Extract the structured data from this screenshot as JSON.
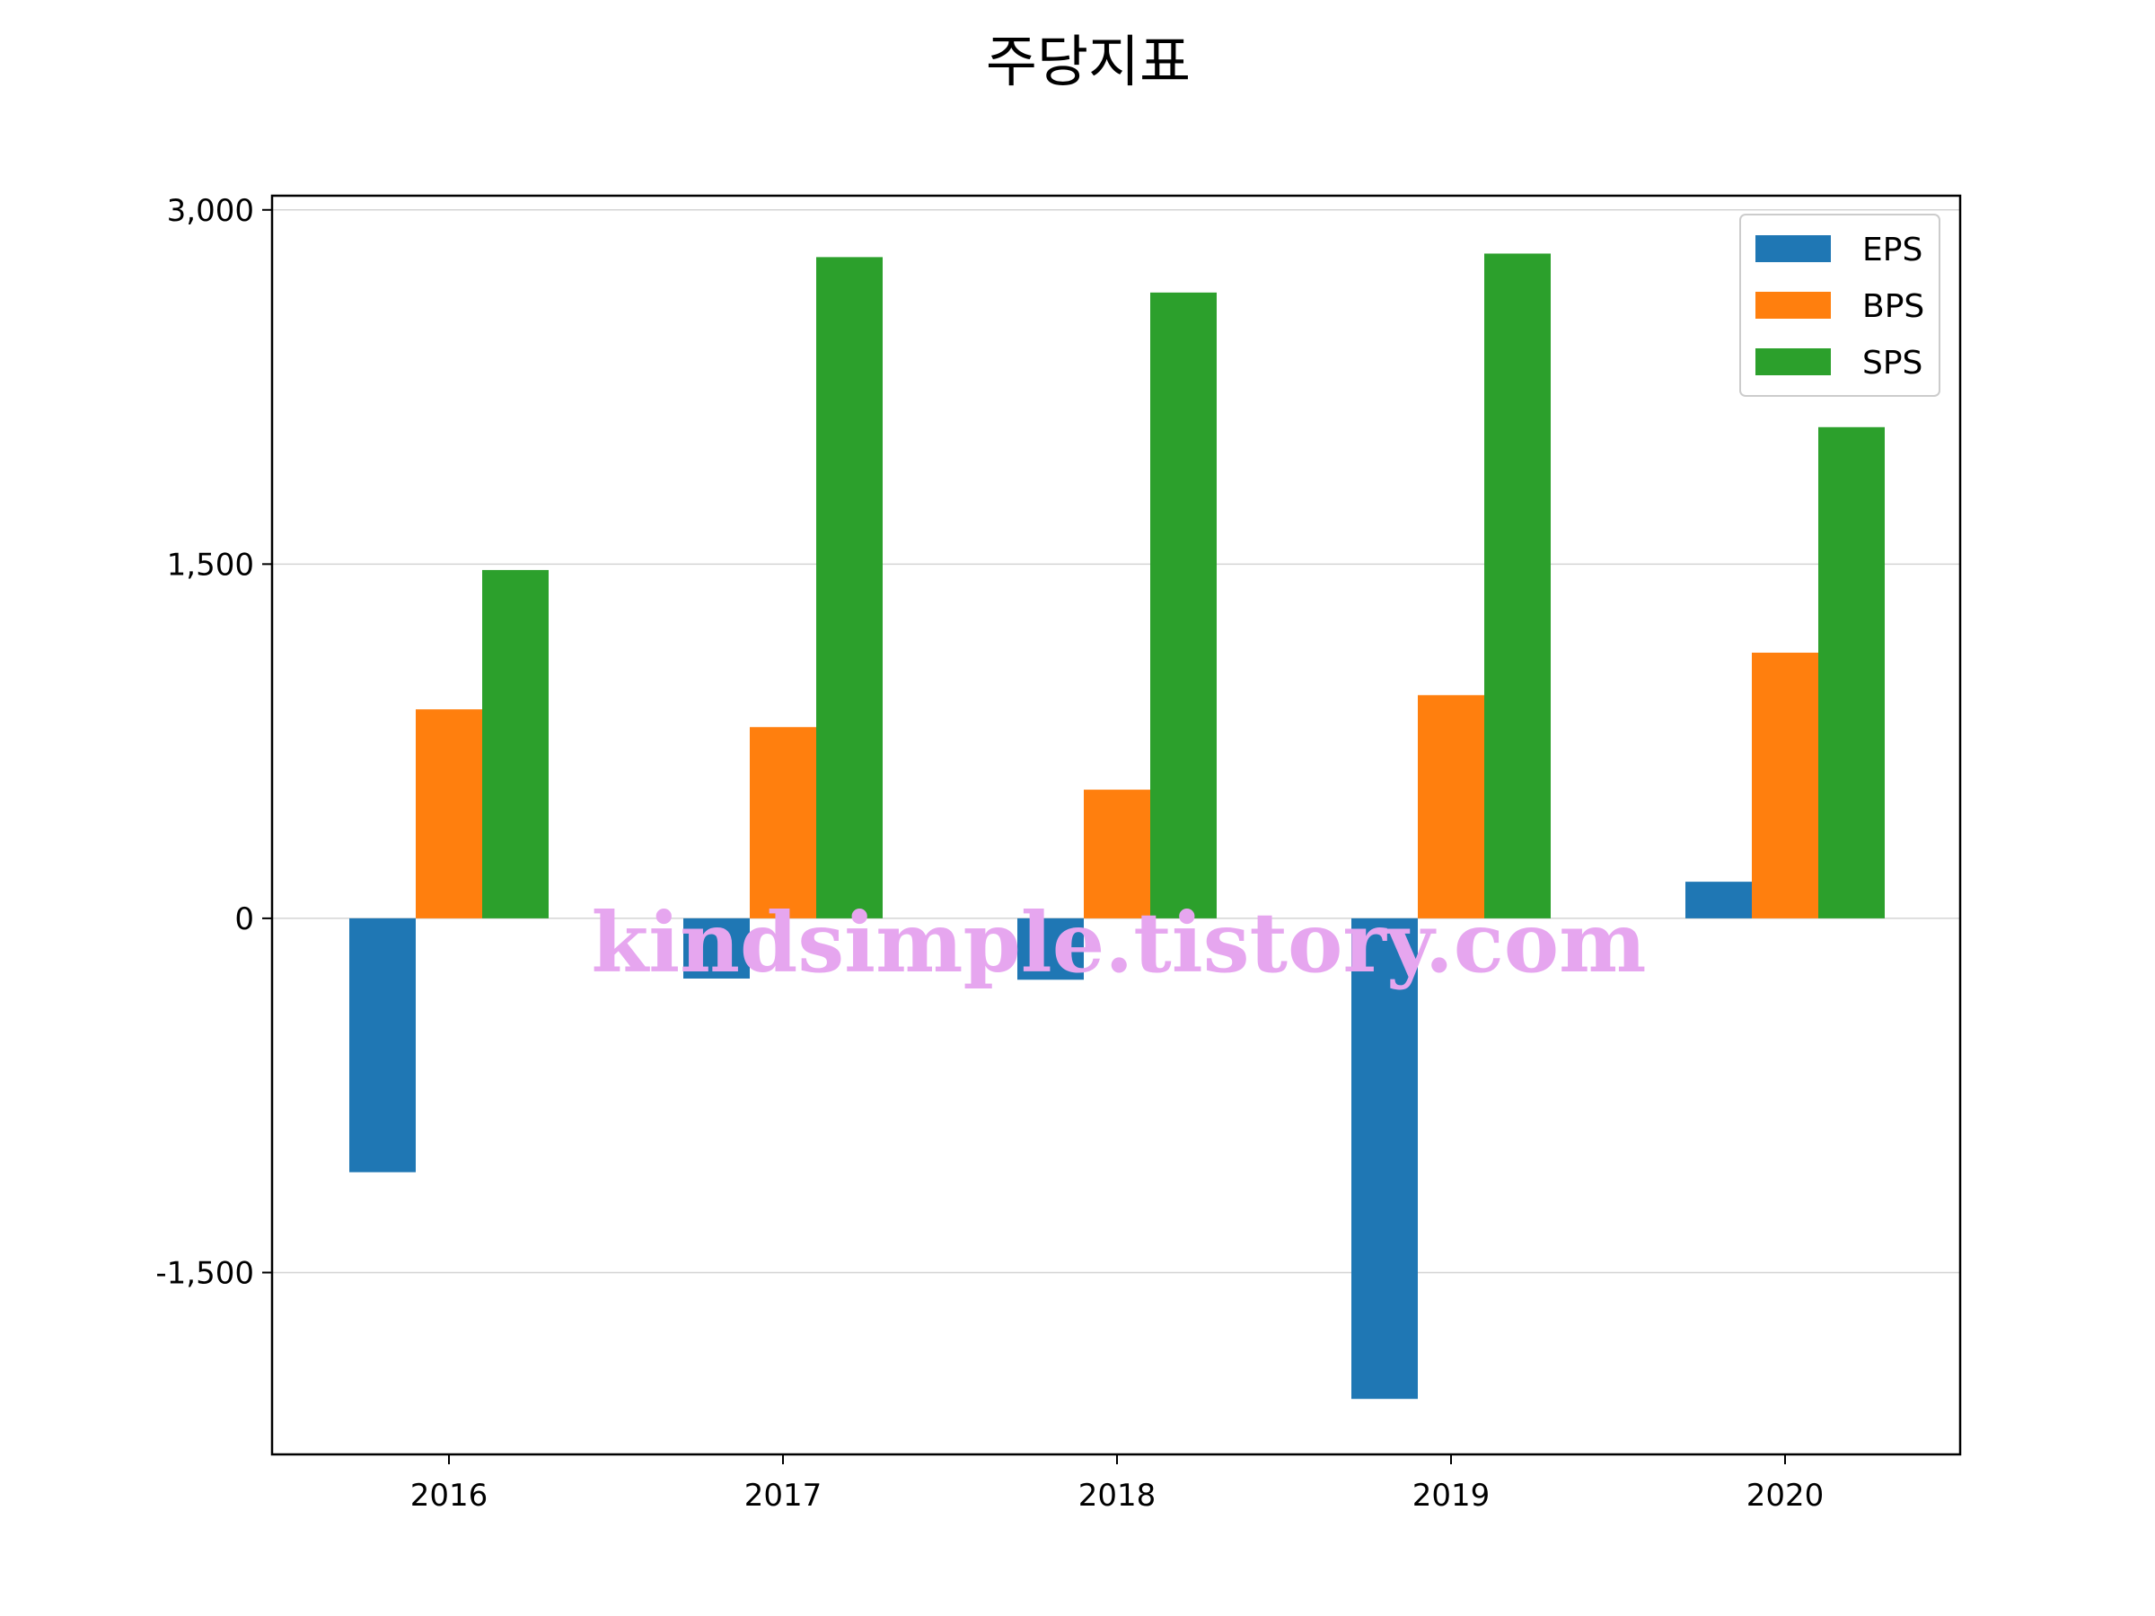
{
  "chart_data": {
    "type": "bar",
    "title": "주당지표",
    "xlabel": "",
    "ylabel": "",
    "categories": [
      "2016",
      "2017",
      "2018",
      "2019",
      "2020"
    ],
    "series": [
      {
        "name": "EPS",
        "values": [
          -1075,
          -255,
          -260,
          -2035,
          155
        ],
        "color": "#1f77b4"
      },
      {
        "name": "BPS",
        "values": [
          885,
          810,
          545,
          945,
          1125
        ],
        "color": "#ff7f0e"
      },
      {
        "name": "SPS",
        "values": [
          1475,
          2800,
          2650,
          2815,
          2080
        ],
        "color": "#2ca02c"
      }
    ],
    "ylim": [
      -2270,
      3060
    ],
    "yticks": [
      -1500,
      0,
      1500,
      3000
    ],
    "ytick_labels": [
      "-1,500",
      "0",
      "1,500",
      "3,000"
    ],
    "grid": "y",
    "legend_position": "top-right"
  },
  "watermark": "kindsimple.tistory.com"
}
